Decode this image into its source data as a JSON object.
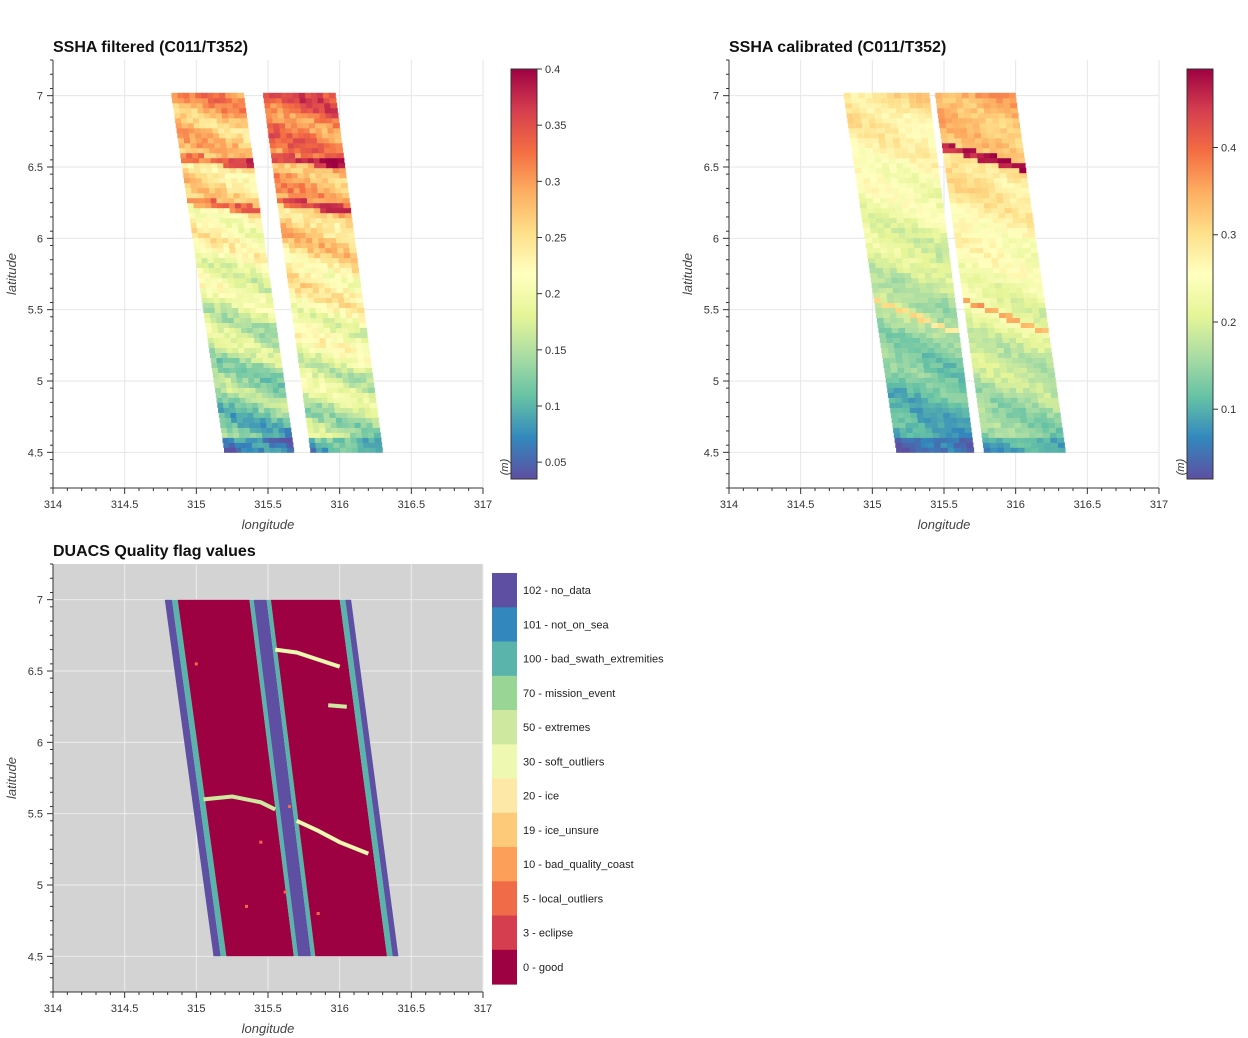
{
  "chart_data": [
    {
      "type": "heatmap",
      "title": "SSHA filtered (C011/T352)",
      "xlabel": "longitude",
      "ylabel": "latitude",
      "xlim": [
        314,
        317
      ],
      "ylim": [
        4.25,
        7.25
      ],
      "xticks": [
        "314",
        "314.5",
        "315",
        "315.5",
        "316",
        "316.5",
        "317"
      ],
      "yticks": [
        "4.5",
        "5",
        "5.5",
        "6",
        "6.5",
        "7"
      ],
      "colorbar": {
        "label": "(m)",
        "min": 0.035,
        "max": 0.4,
        "ticks": [
          "0.05",
          "0.1",
          "0.15",
          "0.2",
          "0.25",
          "0.3",
          "0.35",
          "0.4"
        ]
      },
      "palette": "Spectral",
      "swaths": [
        {
          "lon_top": [
            314.83,
            315.33
          ],
          "lon_bottom": [
            315.2,
            315.68
          ],
          "lat_range": [
            4.5,
            7.0
          ]
        },
        {
          "lon_top": [
            315.47,
            315.97
          ],
          "lon_bottom": [
            315.8,
            316.3
          ],
          "lat_range": [
            4.5,
            7.0
          ]
        }
      ],
      "grid": true
    },
    {
      "type": "heatmap",
      "title": "SSHA calibrated (C011/T352)",
      "xlabel": "longitude",
      "ylabel": "latitude",
      "xlim": [
        314,
        317
      ],
      "ylim": [
        4.25,
        7.25
      ],
      "xticks": [
        "314",
        "314.5",
        "315",
        "315.5",
        "316",
        "316.5",
        "317"
      ],
      "yticks": [
        "4.5",
        "5",
        "5.5",
        "6",
        "6.5",
        "7"
      ],
      "colorbar": {
        "label": "(m)",
        "min": 0.02,
        "max": 0.49,
        "ticks": [
          "0.1",
          "0.2",
          "0.3",
          "0.4"
        ]
      },
      "palette": "Spectral",
      "swaths": [
        {
          "lon_top": [
            314.8,
            315.4
          ],
          "lon_bottom": [
            315.17,
            315.71
          ],
          "lat_range": [
            4.5,
            7.0
          ]
        },
        {
          "lon_top": [
            315.44,
            316.0
          ],
          "lon_bottom": [
            315.78,
            316.35
          ],
          "lat_range": [
            4.5,
            7.0
          ]
        }
      ],
      "grid": true
    },
    {
      "type": "heatmap",
      "title": "DUACS Quality flag values",
      "xlabel": "longitude",
      "ylabel": "latitude",
      "xlim": [
        314,
        317
      ],
      "ylim": [
        4.25,
        7.25
      ],
      "xticks": [
        "314",
        "314.5",
        "315",
        "315.5",
        "316",
        "316.5",
        "317"
      ],
      "yticks": [
        "4.5",
        "5",
        "5.5",
        "6",
        "6.5",
        "7"
      ],
      "background_color": "#d3d3d3",
      "legend": [
        {
          "label": "102 - no_data",
          "color": "#5e4fa2"
        },
        {
          "label": "101 - not_on_sea",
          "color": "#3288bd"
        },
        {
          "label": "100 - bad_swath_extremities",
          "color": "#5ab4ac"
        },
        {
          "label": "70 - mission_event",
          "color": "#99d594"
        },
        {
          "label": "50 - extremes",
          "color": "#cfe8a0"
        },
        {
          "label": "30 - soft_outliers",
          "color": "#eef8b0"
        },
        {
          "label": "20 - ice",
          "color": "#fee8a8"
        },
        {
          "label": "19 - ice_unsure",
          "color": "#fdca7a"
        },
        {
          "label": "10 - bad_quality_coast",
          "color": "#fc9f58"
        },
        {
          "label": "5 - local_outliers",
          "color": "#f06b48"
        },
        {
          "label": "3 - eclipse",
          "color": "#d53e4f"
        },
        {
          "label": "0 - good",
          "color": "#9e0142"
        }
      ],
      "grid": true
    }
  ]
}
